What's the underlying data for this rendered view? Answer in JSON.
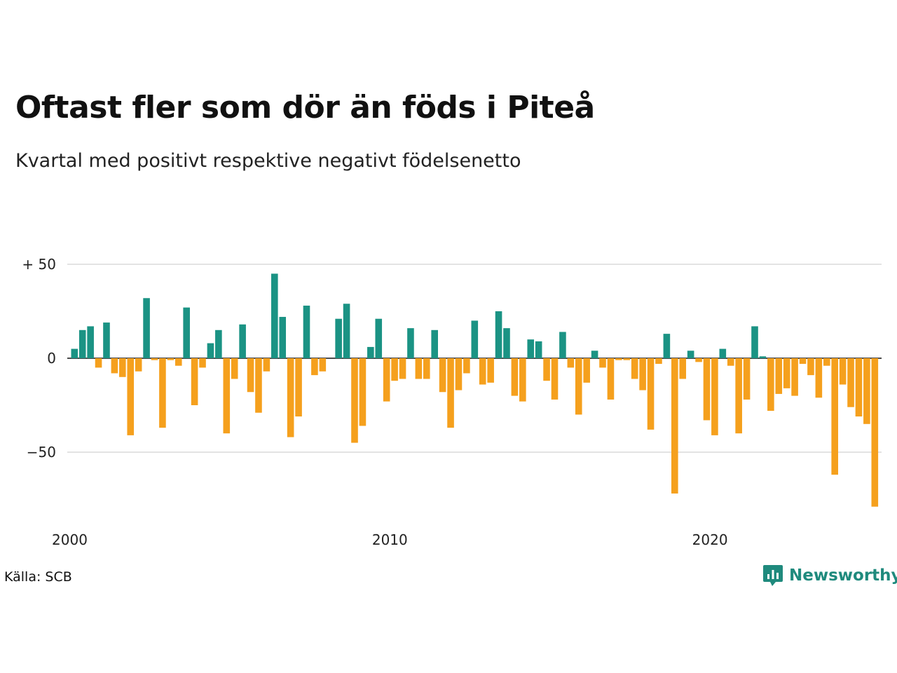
{
  "title": "Oftast fler som dör än föds i Piteå",
  "subtitle": "Kvartal med positivt respektive negativt födelsenetto",
  "source": "Källa: SCB",
  "brand": {
    "name": "Newsworthy",
    "icon": "newsworthy-chart-bubble-icon",
    "color": "#1f8a7d"
  },
  "colors": {
    "positive": "#1b9384",
    "negative": "#f5a01d",
    "gridline": "#e3e3e3",
    "zero_line": "#111111"
  },
  "chart_data": {
    "type": "bar",
    "title": "Oftast fler som dör än föds i Piteå",
    "subtitle": "Kvartal med positivt respektive negativt födelsenetto",
    "xlabel": "",
    "ylabel": "",
    "ylim": [
      -80,
      50
    ],
    "y_ticks": [
      {
        "value": 50,
        "label": "+ 50"
      },
      {
        "value": 0,
        "label": "0"
      },
      {
        "value": -50,
        "label": "−50"
      }
    ],
    "x_ticks": [
      {
        "value": 2000,
        "label": "2000"
      },
      {
        "value": 2010,
        "label": "2010"
      },
      {
        "value": 2020,
        "label": "2020"
      }
    ],
    "grid": true,
    "legend": "none",
    "start": "2000 Q1",
    "frequency": "quarter",
    "values": [
      5,
      15,
      17,
      -5,
      19,
      -8,
      -10,
      -41,
      -7,
      32,
      -1,
      -37,
      -1,
      -4,
      27,
      -25,
      -5,
      8,
      15,
      -40,
      -11,
      18,
      -18,
      -29,
      -7,
      45,
      22,
      -42,
      -31,
      28,
      -9,
      -7,
      0,
      21,
      29,
      -45,
      -36,
      6,
      21,
      -23,
      -12,
      -11,
      16,
      -11,
      -11,
      15,
      -18,
      -37,
      -17,
      -8,
      20,
      -14,
      -13,
      25,
      16,
      -20,
      -23,
      10,
      9,
      -12,
      -22,
      14,
      -5,
      -30,
      -13,
      4,
      -5,
      -22,
      -1,
      -1,
      -11,
      -17,
      -38,
      -3,
      13,
      -72,
      -11,
      4,
      -2,
      -33,
      -41,
      5,
      -4,
      -40,
      -22,
      17,
      1,
      -28,
      -19,
      -16,
      -20,
      -3,
      -9,
      -21,
      -4,
      -62,
      -14,
      -26,
      -31,
      -35,
      -79
    ]
  }
}
